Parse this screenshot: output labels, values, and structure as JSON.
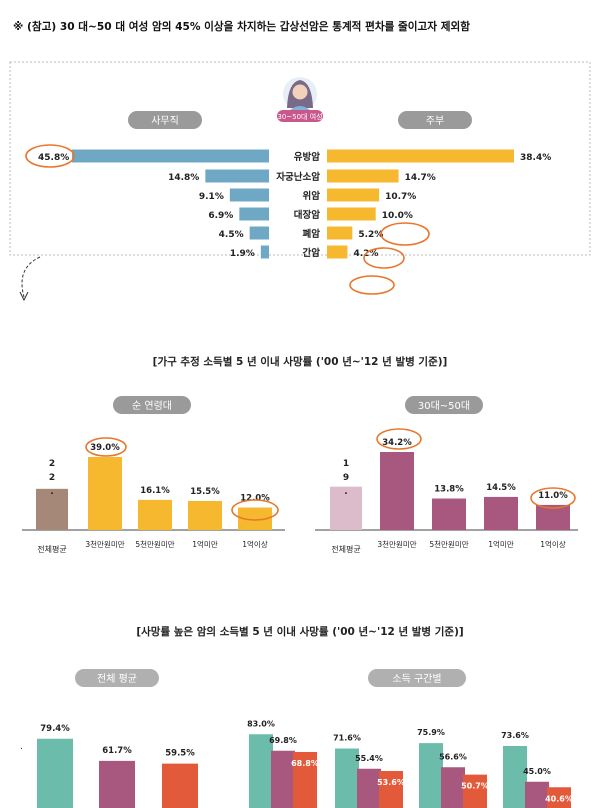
{
  "header": {
    "note": "※ (참고) 30 대~50 대 여성 암의 45% 이상을 차지하는 갑상선암은 통계적 편차를 줄이고자 제외함"
  },
  "colors": {
    "office_bar": "#6fa8c4",
    "housewife_bar": "#f5b82e",
    "pill_gray": "#9a9a9a",
    "pill_gray_light": "#b0b0b0",
    "avg_brown": "#a58878",
    "income_yellow": "#f5b82e",
    "avg_pink": "#dcbccb",
    "income_purple": "#a8577f",
    "teal": "#6bbcaa",
    "purple": "#a8577f",
    "red": "#e35a3a",
    "annotation_orange": "#e8762b",
    "avatar_badge": "#c8588c"
  },
  "chart_data": [
    {
      "type": "bar",
      "orientation": "horizontal-butterfly",
      "avatar_label": "30~50대 여성",
      "series": [
        {
          "name": "사무직",
          "values": [
            45.8,
            14.8,
            9.1,
            6.9,
            4.5,
            1.9
          ],
          "value_labels": [
            "45.8%",
            "14.8%",
            "9.1%",
            "6.9%",
            "4.5%",
            "1.9%"
          ]
        },
        {
          "name": "주부",
          "values": [
            38.4,
            14.7,
            10.7,
            10.0,
            5.2,
            4.2
          ],
          "value_labels": [
            "38.4%",
            "14.7%",
            "10.7%",
            "10.0%",
            "5.2%",
            "4.2%"
          ]
        }
      ],
      "categories": [
        "유방암",
        "자궁난소암",
        "위암",
        "대장암",
        "폐암",
        "간암"
      ]
    },
    {
      "type": "bar",
      "title": "[가구 추정 소득별 5 년 이내 사망률 ('00 년~'12 년 발병 기준)]",
      "panels": [
        {
          "label": "순 연령대",
          "avg_label": "전체평균",
          "avg_value_text": [
            "2",
            "2",
            "."
          ],
          "avg_value": 22,
          "categories": [
            "3천만원미만",
            "5천만원미만",
            "1억미만",
            "1억이상"
          ],
          "values": [
            39.0,
            16.1,
            15.5,
            12.0
          ],
          "value_labels": [
            "39.0%",
            "16.1%",
            "15.5%",
            "12.0%"
          ]
        },
        {
          "label": "30대~50대",
          "avg_label": "전체평균",
          "avg_value_text": [
            "1",
            "9",
            "."
          ],
          "avg_value": 19,
          "categories": [
            "3천만원미만",
            "5천만원미만",
            "1억미만",
            "1억이상"
          ],
          "values": [
            34.2,
            13.8,
            14.5,
            11.0
          ],
          "value_labels": [
            "34.2%",
            "13.8%",
            "14.5%",
            "11.0%"
          ]
        }
      ]
    },
    {
      "type": "bar",
      "title": "[사망률 높은 암의 소득별 5 년 이내 사망률 ('00 년~'12 년 발병 기준)]",
      "panels": [
        {
          "label": "전체 평균",
          "groups": [
            {
              "values": [
                79.4,
                61.7,
                59.5
              ],
              "value_labels": [
                "79.4%",
                "61.7%",
                "59.5%"
              ]
            }
          ]
        },
        {
          "label": "소득 구간별",
          "groups": [
            {
              "values": [
                83.0,
                69.8,
                68.8
              ],
              "value_labels": [
                "83.0%",
                "69.8%",
                "68.8%"
              ]
            },
            {
              "values": [
                71.6,
                55.4,
                53.6
              ],
              "value_labels": [
                "71.6%",
                "55.4%",
                "53.6%"
              ]
            },
            {
              "values": [
                75.9,
                56.6,
                50.7
              ],
              "value_labels": [
                "75.9%",
                "56.6%",
                "50.7%"
              ]
            },
            {
              "values": [
                73.6,
                45.0,
                40.6
              ],
              "value_labels": [
                "73.6%",
                "45.0%",
                "40.6%"
              ]
            }
          ]
        }
      ]
    }
  ]
}
